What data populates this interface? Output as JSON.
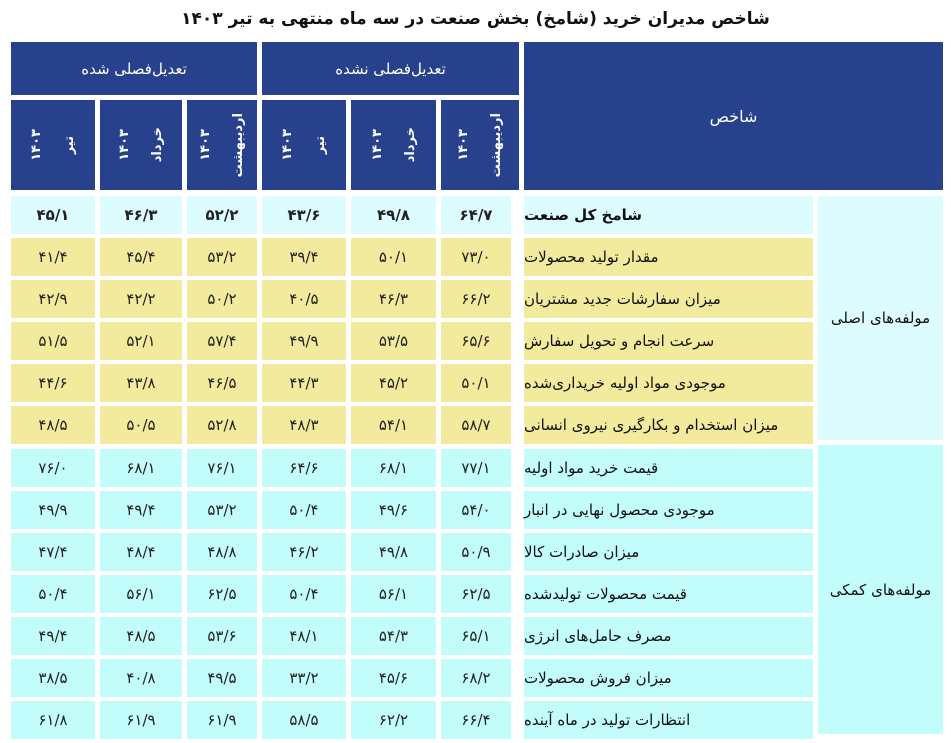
{
  "title": "شاخص مدیران خرید (شامخ) بخش صنعت در سه ماه منتهی به تیر ۱۴۰۳",
  "colors": {
    "header_bg": "#27418c",
    "header_text": "#ffffff",
    "total_row_bg": "#dcfcff",
    "main_rows_bg": "#f2ea9c",
    "aux_rows_bg": "#c2fcfb"
  },
  "header": {
    "indicator_label": "شاخص",
    "group_not_adjusted": "تعدیل‌فصلی نشده",
    "group_adjusted": "تعدیل‌فصلی شده",
    "months": [
      {
        "month": "اردیبهشت",
        "year": "۱۴۰۳"
      },
      {
        "month": "خرداد",
        "year": "۱۴۰۳"
      },
      {
        "month": "تیر",
        "year": "۱۴۰۳"
      }
    ]
  },
  "groups": {
    "main": "مولفه‌های اصلی",
    "aux": "مولفه‌های کمکی"
  },
  "rows": [
    {
      "name": "شامخ کل صنعت",
      "group": "main",
      "nsa": [
        "۶۴/۷",
        "۴۹/۸",
        "۴۳/۶"
      ],
      "sa": [
        "۵۲/۲",
        "۴۶/۳",
        "۴۵/۱"
      ]
    },
    {
      "name": "مقدار تولید محصولات",
      "group": "main",
      "nsa": [
        "۷۳/۰",
        "۵۰/۱",
        "۳۹/۴"
      ],
      "sa": [
        "۵۳/۲",
        "۴۵/۴",
        "۴۱/۴"
      ]
    },
    {
      "name": "میزان سفارشات جدید مشتریان",
      "group": "main",
      "nsa": [
        "۶۶/۲",
        "۴۶/۳",
        "۴۰/۵"
      ],
      "sa": [
        "۵۰/۲",
        "۴۲/۲",
        "۴۲/۹"
      ]
    },
    {
      "name": "سرعت انجام و تحویل سفارش",
      "group": "main",
      "nsa": [
        "۶۵/۶",
        "۵۳/۵",
        "۴۹/۹"
      ],
      "sa": [
        "۵۷/۴",
        "۵۲/۱",
        "۵۱/۵"
      ]
    },
    {
      "name": "موجودی مواد اولیه خریداری‌شده",
      "group": "main",
      "nsa": [
        "۵۰/۱",
        "۴۵/۲",
        "۴۴/۳"
      ],
      "sa": [
        "۴۶/۵",
        "۴۳/۸",
        "۴۴/۶"
      ]
    },
    {
      "name": "میزان استخدام و بکارگیری نیروی انسانی",
      "group": "main",
      "nsa": [
        "۵۸/۷",
        "۵۴/۱",
        "۴۸/۳"
      ],
      "sa": [
        "۵۲/۸",
        "۵۰/۵",
        "۴۸/۵"
      ]
    },
    {
      "name": "قیمت خرید مواد اولیه",
      "group": "aux",
      "nsa": [
        "۷۷/۱",
        "۶۸/۱",
        "۶۴/۶"
      ],
      "sa": [
        "۷۶/۱",
        "۶۸/۱",
        "۷۶/۰"
      ]
    },
    {
      "name": "موجودی محصول نهایی در انبار",
      "group": "aux",
      "nsa": [
        "۵۴/۰",
        "۴۹/۶",
        "۵۰/۴"
      ],
      "sa": [
        "۵۳/۲",
        "۴۹/۴",
        "۴۹/۹"
      ]
    },
    {
      "name": "میزان صادرات کالا",
      "group": "aux",
      "nsa": [
        "۵۰/۹",
        "۴۹/۸",
        "۴۶/۲"
      ],
      "sa": [
        "۴۸/۸",
        "۴۸/۴",
        "۴۷/۴"
      ]
    },
    {
      "name": "قیمت محصولات تولیدشده",
      "group": "aux",
      "nsa": [
        "۶۲/۵",
        "۵۶/۱",
        "۵۰/۴"
      ],
      "sa": [
        "۶۲/۵",
        "۵۶/۱",
        "۵۰/۴"
      ]
    },
    {
      "name": "مصرف حامل‌های انرژی",
      "group": "aux",
      "nsa": [
        "۶۵/۱",
        "۵۴/۳",
        "۴۸/۱"
      ],
      "sa": [
        "۵۳/۶",
        "۴۸/۵",
        "۴۹/۴"
      ]
    },
    {
      "name": "میزان فروش محصولات",
      "group": "aux",
      "nsa": [
        "۶۸/۲",
        "۴۵/۶",
        "۳۳/۲"
      ],
      "sa": [
        "۴۹/۵",
        "۴۰/۸",
        "۳۸/۵"
      ]
    },
    {
      "name": "انتظارات تولید در ماه آینده",
      "group": "aux",
      "nsa": [
        "۶۶/۴",
        "۶۲/۲",
        "۵۸/۵"
      ],
      "sa": [
        "۶۱/۹",
        "۶۱/۹",
        "۶۱/۸"
      ]
    }
  ]
}
